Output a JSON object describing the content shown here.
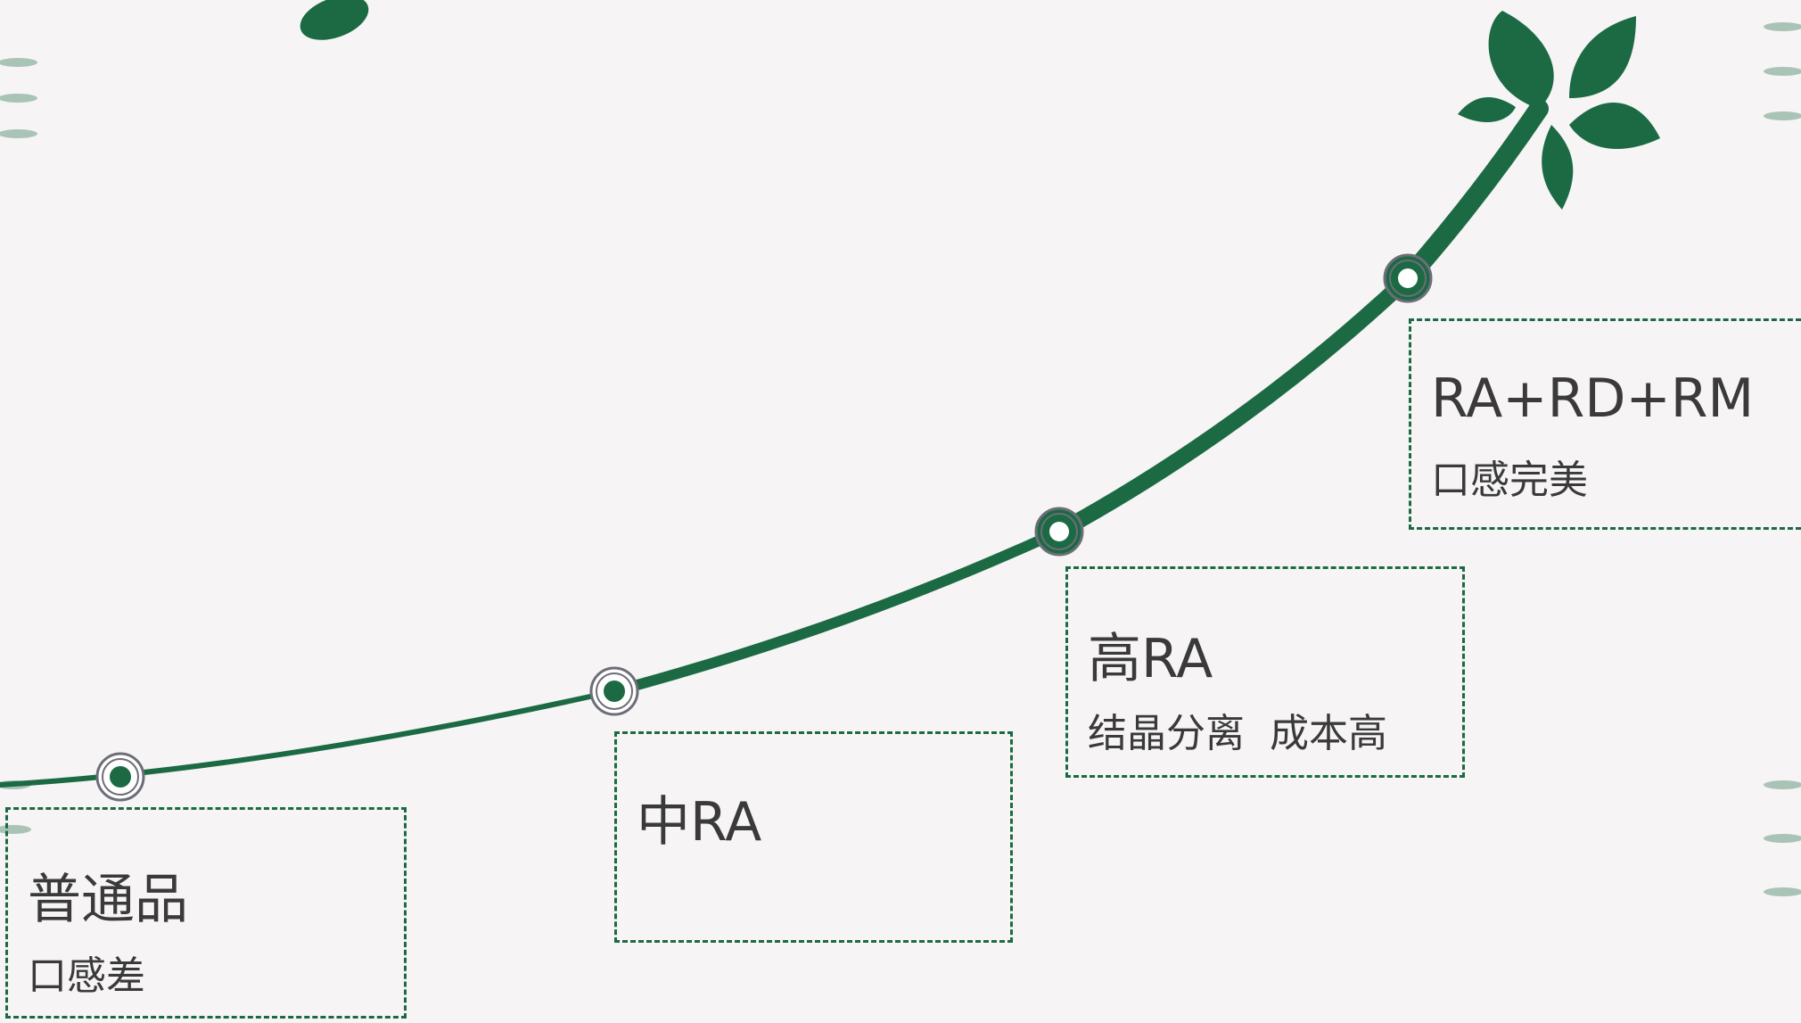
{
  "stages": [
    {
      "title": "普通品",
      "desc": "口感差"
    },
    {
      "title": "中RA"
    },
    {
      "title": "高RA",
      "desc": "结晶分离  成本高"
    },
    {
      "title": "RA+RD+RM",
      "desc": "口感完美"
    }
  ]
}
